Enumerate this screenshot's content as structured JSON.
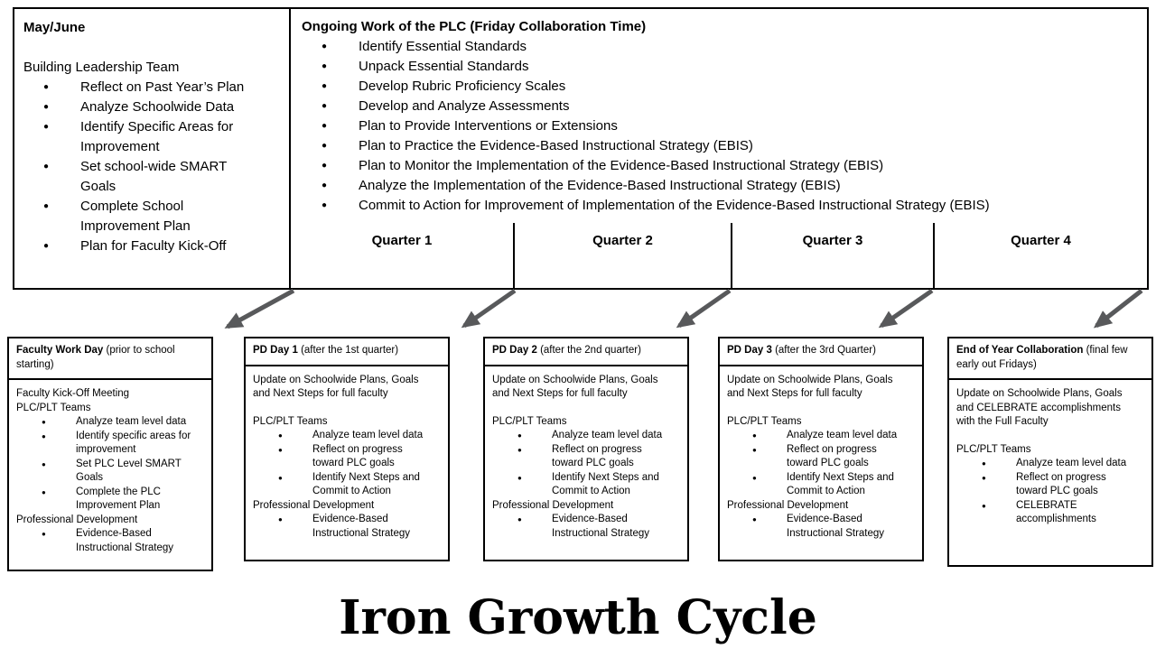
{
  "page_title": "Iron Growth Cycle",
  "colors": {
    "arrow": "#58595b",
    "border": "#000000",
    "background": "#ffffff"
  },
  "may_june_box": {
    "title": "May/June",
    "team_label": "Building Leadership Team",
    "bullets": [
      "Reflect on Past Year’s Plan",
      "Analyze Schoolwide Data",
      "Identify Specific Areas for\nImprovement",
      "Set school-wide SMART\nGoals",
      "Complete School\nImprovement Plan",
      "Plan for Faculty Kick-Off"
    ]
  },
  "ongoing_box": {
    "title": "Ongoing Work of the PLC (Friday Collaboration Time)",
    "bullets": [
      "Identify Essential Standards",
      "Unpack Essential Standards",
      "Develop Rubric Proficiency Scales",
      "Develop and Analyze Assessments",
      "Plan to Provide Interventions or Extensions",
      "Plan to Practice the Evidence-Based Instructional Strategy (EBIS)",
      "Plan to Monitor the Implementation of the Evidence-Based Instructional Strategy (EBIS)",
      "Analyze the Implementation of the Evidence-Based Instructional Strategy (EBIS)",
      "Commit to Action for Improvement of Implementation of the Evidence-Based Instructional Strategy (EBIS)"
    ],
    "quarters": [
      "Quarter 1",
      "Quarter 2",
      "Quarter 3",
      "Quarter 4"
    ]
  },
  "event_boxes": [
    {
      "title": "Faculty Work Day",
      "note": "(prior to school starting)",
      "sections": [
        {
          "label": "Faculty Kick-Off Meeting",
          "bullets": []
        },
        {
          "label": "PLC/PLT Teams",
          "bullets": [
            "Analyze team level data",
            "Identify specific areas for\nimprovement",
            "Set PLC Level SMART\nGoals",
            "Complete the PLC\nImprovement Plan"
          ]
        },
        {
          "label": "Professional Development",
          "bullets": [
            "Evidence-Based\nInstructional Strategy"
          ]
        }
      ]
    },
    {
      "title": "PD Day 1",
      "note": "(after the 1st quarter)",
      "intro": "Update on Schoolwide Plans, Goals\nand Next Steps for full faculty",
      "sections": [
        {
          "label": "PLC/PLT Teams",
          "bullets": [
            "Analyze team level data",
            "Reflect on progress\ntoward PLC goals",
            "Identify Next Steps and\nCommit to Action"
          ]
        },
        {
          "label": "Professional Development",
          "bullets": [
            "Evidence-Based\nInstructional Strategy"
          ]
        }
      ]
    },
    {
      "title": "PD Day 2",
      "note": "(after the 2nd quarter)",
      "intro": "Update on Schoolwide Plans, Goals\nand Next Steps for full faculty",
      "sections": [
        {
          "label": "PLC/PLT Teams",
          "bullets": [
            "Analyze team level data",
            "Reflect on progress\ntoward PLC goals",
            "Identify Next Steps and\nCommit to Action"
          ]
        },
        {
          "label": "Professional Development",
          "bullets": [
            "Evidence-Based\nInstructional Strategy"
          ]
        }
      ]
    },
    {
      "title": "PD Day 3",
      "note": "(after the 3rd Quarter)",
      "intro": "Update on Schoolwide Plans, Goals\nand Next Steps for full faculty",
      "sections": [
        {
          "label": "PLC/PLT Teams",
          "bullets": [
            "Analyze team level data",
            "Reflect on progress\ntoward PLC goals",
            "Identify Next Steps and\nCommit to Action"
          ]
        },
        {
          "label": "Professional Development",
          "bullets": [
            "Evidence-Based\nInstructional Strategy"
          ]
        }
      ]
    },
    {
      "title": "End of Year Collaboration",
      "note": "(final few early out Fridays)",
      "intro": "Update on Schoolwide Plans, Goals\nand CELEBRATE accomplishments\nwith the Full Faculty",
      "sections": [
        {
          "label": "PLC/PLT Teams",
          "bullets": [
            "Analyze team level data",
            "Reflect on progress\ntoward PLC goals",
            "CELEBRATE\naccomplishments"
          ]
        }
      ]
    }
  ]
}
